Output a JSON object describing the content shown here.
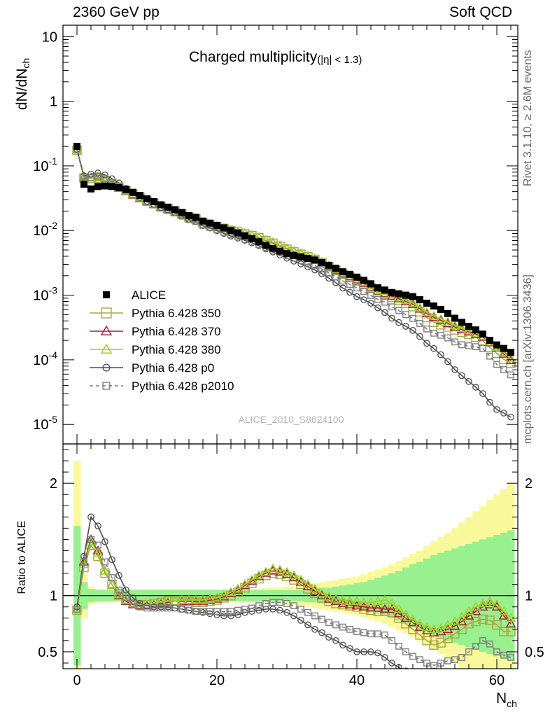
{
  "header": {
    "left": "2360 GeV pp",
    "right": "Soft QCD"
  },
  "side_labels": {
    "rivet": "Rivet 3.1.10, ≥ 2.6M events",
    "mcplots": "mcplots.cern.ch [arXiv:1306.3436]"
  },
  "analysis_id": "ALICE_2010_S8624100",
  "chart_data": [
    {
      "type": "scatter",
      "panel": "main",
      "title": "Charged multiplicity",
      "title_suffix": "(|η| < 1.3)",
      "ylabel": "dN/dN",
      "ylabel_sub": "ch",
      "yscale": "log",
      "ylim": [
        5e-06,
        15
      ],
      "xlim": [
        -2,
        63
      ],
      "x_ticks": [
        0,
        20,
        40,
        60
      ],
      "y_tick_labels": [
        "10",
        "1",
        "10^-1",
        "10^-2",
        "10^-3",
        "10^-4",
        "10^-5"
      ],
      "legend_position": "bottom-left",
      "x": [
        0,
        1,
        2,
        3,
        4,
        5,
        6,
        7,
        8,
        9,
        10,
        11,
        12,
        13,
        14,
        15,
        16,
        17,
        18,
        19,
        20,
        21,
        22,
        23,
        24,
        25,
        26,
        27,
        28,
        29,
        30,
        31,
        32,
        33,
        34,
        35,
        36,
        37,
        38,
        39,
        40,
        41,
        42,
        43,
        44,
        45,
        46,
        47,
        48,
        49,
        50,
        51,
        52,
        53,
        54,
        55,
        56,
        57,
        58,
        59,
        60,
        61,
        62
      ],
      "series": [
        {
          "name": "ALICE",
          "style": "data",
          "color": "#000000",
          "values": [
            0.2,
            0.052,
            0.044,
            0.048,
            0.049,
            0.048,
            0.046,
            0.043,
            0.039,
            0.035,
            0.031,
            0.028,
            0.025,
            0.023,
            0.021,
            0.019,
            0.017,
            0.016,
            0.014,
            0.013,
            0.012,
            0.011,
            0.01,
            0.0092,
            0.0083,
            0.0075,
            0.0067,
            0.0059,
            0.0053,
            0.0048,
            0.0044,
            0.0041,
            0.0039,
            0.0037,
            0.0035,
            0.0032,
            0.0029,
            0.0026,
            0.0023,
            0.0021,
            0.0019,
            0.0017,
            0.0015,
            0.0013,
            0.0012,
            0.0011,
            0.00105,
            0.001,
            0.00095,
            0.00085,
            0.00075,
            0.00068,
            0.0006,
            0.00052,
            0.00044,
            0.00038,
            0.00033,
            0.00029,
            0.00025,
            0.0002,
            0.00017,
            0.00015,
            0.00013
          ]
        },
        {
          "name": "Pythia 6.428 350",
          "style": "square",
          "color": "#a8a842",
          "ratio": [
            0.87,
            1.25,
            1.45,
            1.35,
            1.2,
            1.1,
            1.02,
            0.97,
            0.93,
            0.92,
            0.92,
            0.93,
            0.94,
            0.95,
            0.95,
            0.95,
            0.95,
            0.94,
            0.94,
            0.95,
            0.96,
            0.98,
            1.0,
            1.03,
            1.07,
            1.11,
            1.15,
            1.18,
            1.2,
            1.19,
            1.17,
            1.14,
            1.1,
            1.06,
            1.02,
            0.98,
            0.95,
            0.93,
            0.92,
            0.91,
            0.9,
            0.88,
            0.87,
            0.86,
            0.86,
            0.85,
            0.8,
            0.75,
            0.7,
            0.65,
            0.6,
            0.56,
            0.58,
            0.62,
            0.66,
            0.7,
            0.75,
            0.77,
            0.79,
            0.78,
            0.74,
            0.68,
            0.68
          ]
        },
        {
          "name": "Pythia 6.428 370",
          "style": "triangle",
          "color": "#a81e36",
          "ratio": [
            0.88,
            1.3,
            1.5,
            1.4,
            1.22,
            1.1,
            1.0,
            0.95,
            0.92,
            0.91,
            0.91,
            0.92,
            0.93,
            0.94,
            0.95,
            0.95,
            0.95,
            0.95,
            0.95,
            0.96,
            0.97,
            0.99,
            1.02,
            1.05,
            1.09,
            1.13,
            1.17,
            1.2,
            1.22,
            1.21,
            1.19,
            1.16,
            1.12,
            1.08,
            1.04,
            1.0,
            0.97,
            0.95,
            0.93,
            0.92,
            0.91,
            0.9,
            0.89,
            0.89,
            0.88,
            0.88,
            0.84,
            0.8,
            0.76,
            0.72,
            0.69,
            0.67,
            0.68,
            0.7,
            0.73,
            0.77,
            0.82,
            0.86,
            0.9,
            0.92,
            0.9,
            0.82,
            0.75
          ]
        },
        {
          "name": "Pythia 6.428 380",
          "style": "triangle",
          "color": "#9ad226",
          "ratio": [
            0.88,
            1.28,
            1.48,
            1.38,
            1.22,
            1.1,
            1.01,
            0.96,
            0.93,
            0.92,
            0.92,
            0.93,
            0.94,
            0.95,
            0.95,
            0.96,
            0.96,
            0.96,
            0.96,
            0.97,
            0.98,
            1.0,
            1.03,
            1.06,
            1.1,
            1.14,
            1.18,
            1.21,
            1.24,
            1.23,
            1.21,
            1.18,
            1.14,
            1.1,
            1.06,
            1.02,
            0.99,
            0.97,
            0.96,
            0.95,
            0.95,
            0.94,
            0.94,
            0.95,
            0.96,
            0.93,
            0.88,
            0.83,
            0.79,
            0.75,
            0.72,
            0.7,
            0.71,
            0.74,
            0.77,
            0.81,
            0.86,
            0.9,
            0.93,
            0.95,
            0.92,
            0.86,
            0.8
          ]
        },
        {
          "name": "Pythia 6.428 p0",
          "style": "circle",
          "color": "#4d4d4d",
          "ratio": [
            0.9,
            1.35,
            1.7,
            1.62,
            1.48,
            1.32,
            1.18,
            1.05,
            0.98,
            0.93,
            0.91,
            0.9,
            0.9,
            0.9,
            0.89,
            0.88,
            0.87,
            0.86,
            0.85,
            0.84,
            0.83,
            0.82,
            0.82,
            0.83,
            0.85,
            0.86,
            0.87,
            0.88,
            0.88,
            0.87,
            0.85,
            0.82,
            0.78,
            0.74,
            0.7,
            0.67,
            0.63,
            0.6,
            0.56,
            0.53,
            0.5,
            0.5,
            0.5,
            0.49,
            0.45,
            0.4,
            0.36,
            0.33,
            0.3,
            0.27,
            0.24,
            0.22,
            0.2,
            0.18,
            0.16,
            0.15,
            0.14,
            0.13,
            0.12,
            0.11,
            0.1,
            0.1,
            0.1
          ]
        },
        {
          "name": "Pythia 6.428 p2010",
          "style": "open-square-dashed",
          "color": "#7f7f7f",
          "ratio": [
            0.88,
            1.3,
            1.5,
            1.45,
            1.3,
            1.16,
            1.05,
            0.98,
            0.93,
            0.9,
            0.89,
            0.89,
            0.89,
            0.89,
            0.89,
            0.88,
            0.87,
            0.86,
            0.86,
            0.86,
            0.86,
            0.86,
            0.86,
            0.87,
            0.88,
            0.89,
            0.91,
            0.93,
            0.94,
            0.94,
            0.93,
            0.91,
            0.88,
            0.85,
            0.82,
            0.79,
            0.76,
            0.74,
            0.72,
            0.7,
            0.68,
            0.67,
            0.66,
            0.66,
            0.65,
            0.6,
            0.55,
            0.5,
            0.46,
            0.43,
            0.4,
            0.38,
            0.4,
            0.42,
            0.43,
            0.45,
            0.5,
            0.55,
            0.6,
            0.57,
            0.5,
            0.47,
            0.45
          ]
        }
      ]
    },
    {
      "type": "line",
      "panel": "ratio",
      "ylabel": "Ratio to ALICE",
      "xlabel": "N",
      "xlabel_sub": "ch",
      "ylim": [
        0.35,
        2.35
      ],
      "xlim": [
        -2,
        63
      ],
      "y_ticks": [
        0.5,
        1,
        2
      ],
      "y_tick_labels": [
        "0.5",
        "1",
        "2"
      ],
      "x_ticks": [
        0,
        20,
        40,
        60
      ],
      "reference_line": 1,
      "band_colors": {
        "stat": "#99f08f",
        "total": "#f9f99c"
      },
      "band_stat_halfwidth": [
        0.62,
        0.12,
        0.06,
        0.05,
        0.05,
        0.05,
        0.05,
        0.05,
        0.05,
        0.05,
        0.05,
        0.05,
        0.05,
        0.05,
        0.05,
        0.05,
        0.05,
        0.05,
        0.05,
        0.05,
        0.05,
        0.05,
        0.05,
        0.05,
        0.05,
        0.05,
        0.05,
        0.05,
        0.05,
        0.05,
        0.05,
        0.05,
        0.05,
        0.06,
        0.06,
        0.07,
        0.07,
        0.08,
        0.09,
        0.1,
        0.11,
        0.12,
        0.14,
        0.16,
        0.18,
        0.2,
        0.22,
        0.25,
        0.28,
        0.3,
        0.33,
        0.36,
        0.38,
        0.4,
        0.42,
        0.44,
        0.46,
        0.48,
        0.5,
        0.52,
        0.54,
        0.56,
        0.58
      ],
      "band_total_halfwidth": [
        1.2,
        0.2,
        0.08,
        0.06,
        0.06,
        0.06,
        0.06,
        0.06,
        0.06,
        0.06,
        0.06,
        0.06,
        0.06,
        0.06,
        0.06,
        0.06,
        0.06,
        0.06,
        0.06,
        0.06,
        0.06,
        0.06,
        0.06,
        0.06,
        0.06,
        0.06,
        0.06,
        0.07,
        0.07,
        0.07,
        0.08,
        0.08,
        0.09,
        0.1,
        0.11,
        0.12,
        0.13,
        0.14,
        0.15,
        0.16,
        0.17,
        0.19,
        0.21,
        0.23,
        0.25,
        0.28,
        0.31,
        0.34,
        0.37,
        0.4,
        0.44,
        0.48,
        0.52,
        0.56,
        0.6,
        0.65,
        0.7,
        0.75,
        0.8,
        0.85,
        0.9,
        0.95,
        1.0
      ]
    }
  ]
}
